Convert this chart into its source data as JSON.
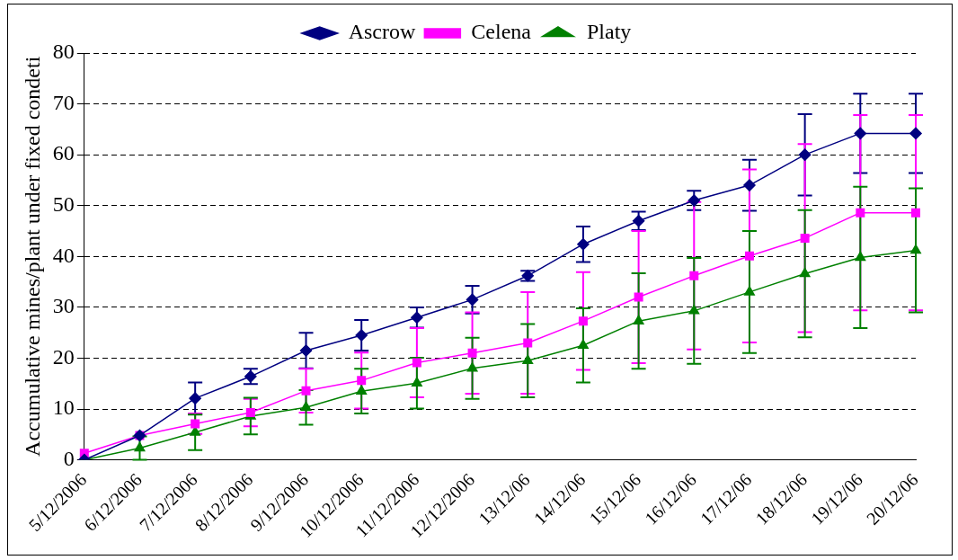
{
  "chart_data": {
    "type": "line",
    "ylabel": "Accumulative mines/plant under fixed condeti",
    "categories": [
      "5/12/2006",
      "6/12/2006",
      "7/12/2006",
      "8/12/2006",
      "9/12/2006",
      "10/12/2006",
      "11/12/2006",
      "12/12/2006",
      "13/12/06",
      "14/12/06",
      "15/12/06",
      "16/12/06",
      "17/12/06",
      "18/12/06",
      "19/12/06",
      "20/12/06"
    ],
    "series": [
      {
        "name": "Ascrow",
        "color": "#000080",
        "marker": "diamond",
        "values": [
          0,
          4.8,
          12.1,
          16.4,
          21.5,
          24.5,
          28,
          31.5,
          36.2,
          42.4,
          47,
          51,
          54,
          60,
          64.2,
          64.2
        ],
        "errors": [
          null,
          null,
          3.1,
          1.5,
          3.5,
          3,
          2,
          2.7,
          1,
          3.5,
          1.8,
          1.9,
          5,
          8,
          7.8,
          7.8
        ]
      },
      {
        "name": "Celena",
        "color": "#ff00ff",
        "marker": "square",
        "values": [
          1.3,
          4.8,
          7.1,
          9.3,
          13.6,
          15.6,
          19.1,
          21,
          23,
          27.3,
          32,
          36.2,
          40.1,
          43.6,
          48.6,
          48.6
        ],
        "errors": [
          null,
          null,
          2,
          2.7,
          4.3,
          5.5,
          6.8,
          8,
          10,
          9.6,
          13,
          14.5,
          17,
          18.5,
          19.2,
          19.2
        ]
      },
      {
        "name": "Platy",
        "color": "#008000",
        "marker": "triangle",
        "values": [
          0,
          2.3,
          5.4,
          8.6,
          10.3,
          13.5,
          15.1,
          18,
          19.5,
          22.5,
          27.3,
          29.3,
          33,
          36.6,
          39.8,
          41.2
        ],
        "errors": [
          null,
          2.3,
          3.5,
          3.6,
          3.4,
          4.4,
          5,
          6,
          7.2,
          7.3,
          9.4,
          10.4,
          12,
          12.5,
          13.9,
          12.2
        ]
      }
    ],
    "ylim": [
      0,
      80
    ],
    "yticks": [
      0,
      10,
      20,
      30,
      40,
      50,
      60,
      70,
      80
    ],
    "grid": "y",
    "legend": "top",
    "line_style": "solid"
  }
}
